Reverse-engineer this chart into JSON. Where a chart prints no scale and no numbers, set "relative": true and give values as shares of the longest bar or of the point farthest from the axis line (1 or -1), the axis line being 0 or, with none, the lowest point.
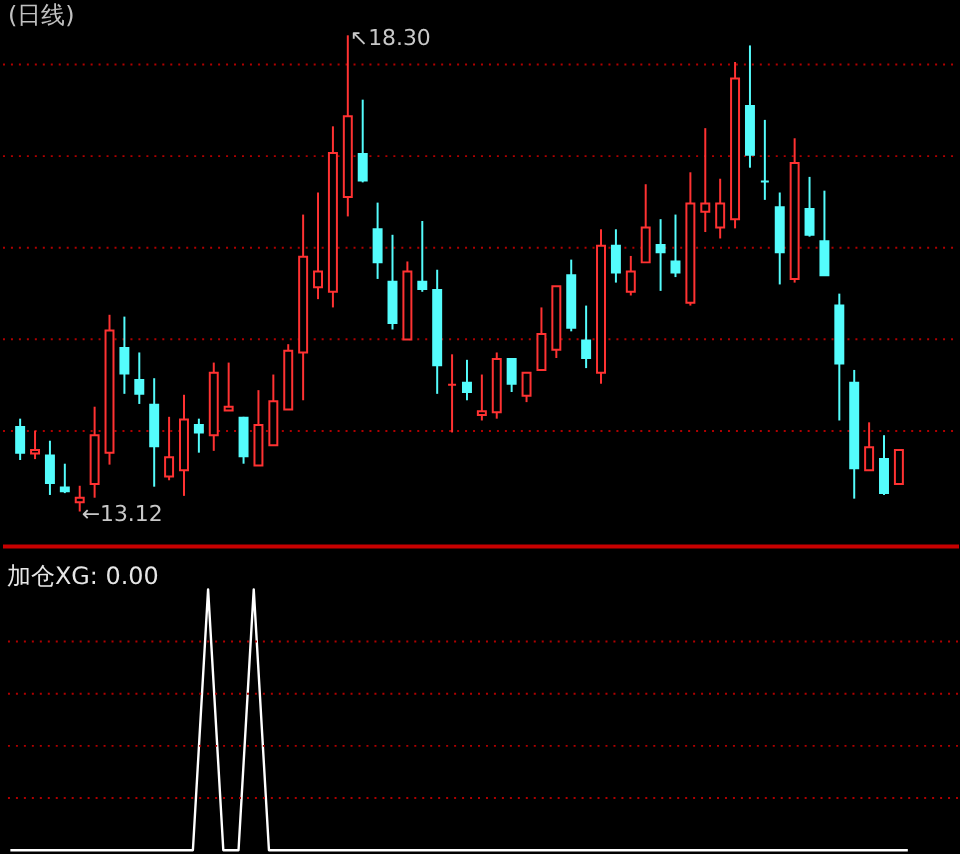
{
  "chart_data": [
    {
      "type": "candlestick",
      "title": "(日线)",
      "categories": [
        null,
        null,
        null,
        null,
        null,
        null,
        null,
        null,
        null,
        null,
        null,
        null,
        null,
        null,
        null,
        null,
        null,
        null,
        null,
        null,
        null,
        null,
        null,
        null,
        null,
        null,
        null,
        null,
        null,
        null,
        null,
        null,
        null,
        null,
        null,
        null,
        null,
        null,
        null,
        null,
        null,
        null,
        null,
        null,
        null,
        null,
        null,
        null,
        null,
        null,
        null,
        null,
        null,
        null,
        null,
        null,
        null,
        null,
        null,
        null
      ],
      "ohlc": [
        [
          14.04,
          14.13,
          13.68,
          13.76
        ],
        [
          13.75,
          14.0,
          13.69,
          13.79
        ],
        [
          13.73,
          13.89,
          13.3,
          13.43
        ],
        [
          13.38,
          13.64,
          13.32,
          13.34
        ],
        [
          13.22,
          13.4,
          13.12,
          13.27
        ],
        [
          13.42,
          14.26,
          13.27,
          13.95
        ],
        [
          13.76,
          15.26,
          13.63,
          15.09
        ],
        [
          14.9,
          15.24,
          14.4,
          14.62
        ],
        [
          14.55,
          14.85,
          14.29,
          14.4
        ],
        [
          14.28,
          14.57,
          13.39,
          13.83
        ],
        [
          13.5,
          14.15,
          13.46,
          13.71
        ],
        [
          13.57,
          14.39,
          13.29,
          14.12
        ],
        [
          14.06,
          14.13,
          13.76,
          13.98
        ],
        [
          13.95,
          14.74,
          13.78,
          14.63
        ],
        [
          14.22,
          14.74,
          14.22,
          14.26
        ],
        [
          14.14,
          14.15,
          13.64,
          13.72
        ],
        [
          13.62,
          14.44,
          13.62,
          14.06
        ],
        [
          13.84,
          14.61,
          13.84,
          14.32
        ],
        [
          14.23,
          14.94,
          14.23,
          14.87
        ],
        [
          14.85,
          16.35,
          14.33,
          15.89
        ],
        [
          15.56,
          16.59,
          15.43,
          15.73
        ],
        [
          15.51,
          17.31,
          15.34,
          17.02
        ],
        [
          16.54,
          18.3,
          16.33,
          17.42
        ],
        [
          17.01,
          17.6,
          16.7,
          16.72
        ],
        [
          16.19,
          16.48,
          15.65,
          15.83
        ],
        [
          15.62,
          16.13,
          15.1,
          15.17
        ],
        [
          14.99,
          15.84,
          14.99,
          15.73
        ],
        [
          15.62,
          16.28,
          15.51,
          15.54
        ],
        [
          15.53,
          15.75,
          14.4,
          14.71
        ],
        [
          14.5,
          14.83,
          13.98,
          14.5
        ],
        [
          14.52,
          14.77,
          14.33,
          14.42
        ],
        [
          14.17,
          14.61,
          14.11,
          14.21
        ],
        [
          14.2,
          14.85,
          14.13,
          14.78
        ],
        [
          14.78,
          14.78,
          14.42,
          14.51
        ],
        [
          14.38,
          14.63,
          14.31,
          14.63
        ],
        [
          14.66,
          15.34,
          14.66,
          15.05
        ],
        [
          14.88,
          15.57,
          14.79,
          15.57
        ],
        [
          15.69,
          15.86,
          15.08,
          15.12
        ],
        [
          14.98,
          15.36,
          14.68,
          14.79
        ],
        [
          14.63,
          16.19,
          14.51,
          16.01
        ],
        [
          16.01,
          16.19,
          15.61,
          15.72
        ],
        [
          15.51,
          15.9,
          15.47,
          15.73
        ],
        [
          15.83,
          16.68,
          15.83,
          16.21
        ],
        [
          16.02,
          16.3,
          15.52,
          15.94
        ],
        [
          15.84,
          16.35,
          15.67,
          15.72
        ],
        [
          15.39,
          16.81,
          15.36,
          16.47
        ],
        [
          16.38,
          17.29,
          16.16,
          16.47
        ],
        [
          16.21,
          16.74,
          16.09,
          16.47
        ],
        [
          16.3,
          18.01,
          16.2,
          17.83
        ],
        [
          17.53,
          18.19,
          16.86,
          17.0
        ],
        [
          16.71,
          17.38,
          16.51,
          16.71
        ],
        [
          16.43,
          16.59,
          15.59,
          15.94
        ],
        [
          15.65,
          17.18,
          15.61,
          16.91
        ],
        [
          16.41,
          16.76,
          16.11,
          16.13
        ],
        [
          16.06,
          16.61,
          15.69,
          15.69
        ],
        [
          15.36,
          15.49,
          14.11,
          14.73
        ],
        [
          14.52,
          14.66,
          13.26,
          13.59
        ],
        [
          13.57,
          14.09,
          13.57,
          13.82
        ],
        [
          13.69,
          13.95,
          13.3,
          13.32
        ],
        [
          13.42,
          13.79,
          13.42,
          13.79
        ]
      ],
      "colors": [
        "#54fcfc",
        "#ff3232",
        "#54fcfc",
        "#54fcfc",
        "#ff3232",
        "#ff3232",
        "#ff3232",
        "#54fcfc",
        "#54fcfc",
        "#54fcfc",
        "#ff3232",
        "#ff3232",
        "#54fcfc",
        "#ff3232",
        "#ff3232",
        "#54fcfc",
        "#ff3232",
        "#ff3232",
        "#ff3232",
        "#ff3232",
        "#ff3232",
        "#ff3232",
        "#ff3232",
        "#54fcfc",
        "#54fcfc",
        "#54fcfc",
        "#ff3232",
        "#54fcfc",
        "#54fcfc",
        "#ff3232",
        "#54fcfc",
        "#ff3232",
        "#ff3232",
        "#54fcfc",
        "#ff3232",
        "#ff3232",
        "#ff3232",
        "#54fcfc",
        "#54fcfc",
        "#ff3232",
        "#54fcfc",
        "#ff3232",
        "#ff3232",
        "#54fcfc",
        "#54fcfc",
        "#ff3232",
        "#ff3232",
        "#ff3232",
        "#ff3232",
        "#54fcfc",
        "#54fcfc",
        "#54fcfc",
        "#ff3232",
        "#54fcfc",
        "#54fcfc",
        "#54fcfc",
        "#54fcfc",
        "#ff3232",
        "#54fcfc",
        "#ff3232"
      ],
      "yticks": [
        {
          "value": 14,
          "label": null
        },
        {
          "value": 15,
          "label": null
        },
        {
          "value": 16,
          "label": null
        },
        {
          "value": 17,
          "label": null
        },
        {
          "value": 18,
          "label": null
        }
      ],
      "grid": "y",
      "tick_labels": false,
      "annotations": [
        "↖18.30",
        "←13.12"
      ]
    },
    {
      "type": "line",
      "title": "加仓XG: 0.00",
      "categories": [
        null,
        null,
        null,
        null,
        null,
        null,
        null,
        null,
        null,
        null,
        null,
        null,
        null,
        null,
        null,
        null,
        null,
        null,
        null,
        null,
        null,
        null,
        null,
        null,
        null,
        null,
        null,
        null,
        null,
        null,
        null,
        null,
        null,
        null,
        null,
        null,
        null,
        null,
        null,
        null,
        null,
        null,
        null,
        null,
        null,
        null,
        null,
        null,
        null,
        null,
        null,
        null,
        null,
        null,
        null,
        null,
        null,
        null,
        null,
        null
      ],
      "series": [
        {
          "color": "#ffffff",
          "values": [
            0,
            0,
            0,
            0,
            0,
            0,
            0,
            0,
            0,
            0,
            0,
            0,
            0,
            1,
            0,
            0,
            1,
            0,
            0,
            0,
            0,
            0,
            0,
            0,
            0,
            0,
            0,
            0,
            0,
            0,
            0,
            0,
            0,
            0,
            0,
            0,
            0,
            0,
            0,
            0,
            0,
            0,
            0,
            0,
            0,
            0,
            0,
            0,
            0,
            0,
            0,
            0,
            0,
            0,
            0,
            0,
            0,
            0,
            0,
            0
          ]
        }
      ],
      "relative": true,
      "ref_lines": [
        {
          "axis": "y",
          "value": 0.2,
          "color": "#b00000",
          "line_style": "dotted"
        },
        {
          "axis": "y",
          "value": 0.4,
          "color": "#b00000",
          "line_style": "dotted"
        },
        {
          "axis": "y",
          "value": 0.6,
          "color": "#b00000",
          "line_style": "dotted"
        },
        {
          "axis": "y",
          "value": 0.8,
          "color": "#b00000",
          "line_style": "dotted"
        }
      ],
      "tick_labels": false
    }
  ]
}
